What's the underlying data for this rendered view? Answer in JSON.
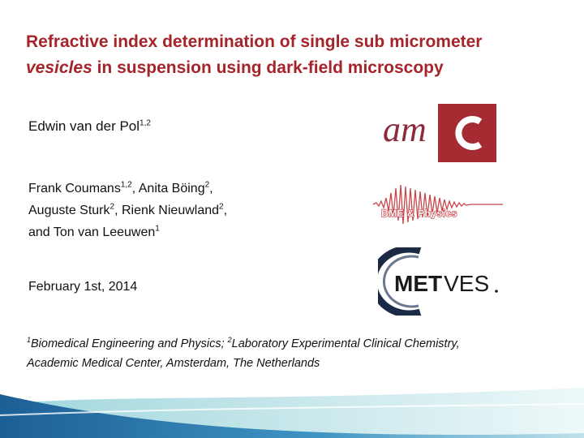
{
  "title": {
    "line1": "Refractive index determination of single sub micrometer",
    "line2_italic": "vesicles",
    "line2_rest": " in suspension using dark-field microscopy"
  },
  "author_main": {
    "name": "Edwin van der Pol",
    "sup": "1,2"
  },
  "coauthors": {
    "line1": [
      {
        "name": "Frank Coumans",
        "sup": "1,2",
        "after": ", "
      },
      {
        "name": "Anita Böing",
        "sup": "2",
        "after": ","
      }
    ],
    "line2": [
      {
        "name": "Auguste Sturk",
        "sup": "2",
        "after": ", "
      },
      {
        "name": "Rienk Nieuwland",
        "sup": "2",
        "after": ","
      }
    ],
    "line3": [
      {
        "name": "and Ton van Leeuwen",
        "sup": "1",
        "after": ""
      }
    ]
  },
  "date": "February 1st, 2014",
  "affiliations": {
    "line1": {
      "sup1": "1",
      "text1": "Biomedical Engineering and Physics; ",
      "sup2": "2",
      "text2": "Laboratory Experimental Clinical Chemistry,"
    },
    "line2": "Academic Medical Center, Amsterdam, The Netherlands"
  },
  "logos": {
    "amc": {
      "text": "am",
      "colors": {
        "red": "#a52a32",
        "maroon": "#8a2a3a"
      }
    },
    "bme": {
      "text": "BME & Physics",
      "color": "#c0262c"
    },
    "metves": {
      "text_bold": "MET",
      "text_light": "VES",
      "color": "#1a1a1a"
    }
  },
  "colors": {
    "title": "#a5242a",
    "footer_dark": "#1f6fa8",
    "footer_teal": "#52b4be"
  }
}
